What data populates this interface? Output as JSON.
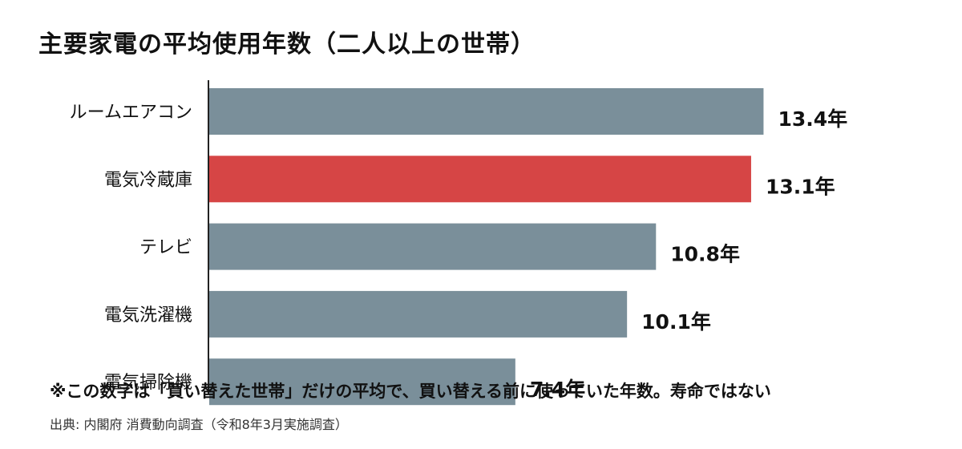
{
  "title": "主要家電の平均使用年数（二人以上の世帯）",
  "note": "※この数字は「買い替えた世帯」だけの平均で、買い替える前に使っていた年数。寿命ではない",
  "source": "出典: 内閣府 消費動向調査（令和8年3月実施調査）",
  "colors": {
    "default": "#7a8f9a",
    "highlight": "#d64545",
    "axis": "#222222"
  },
  "chart_data": {
    "type": "bar",
    "orientation": "horizontal",
    "categories": [
      "ルームエアコン",
      "電気冷蔵庫",
      "テレビ",
      "電気洗濯機",
      "電気掃除機"
    ],
    "values": [
      13.4,
      13.1,
      10.8,
      10.1,
      7.4
    ],
    "value_labels": [
      "13.4年",
      "13.1年",
      "10.8年",
      "10.1年",
      "7.4年"
    ],
    "unit": "年",
    "highlight": "電気冷蔵庫",
    "xlim": [
      0,
      14
    ]
  }
}
